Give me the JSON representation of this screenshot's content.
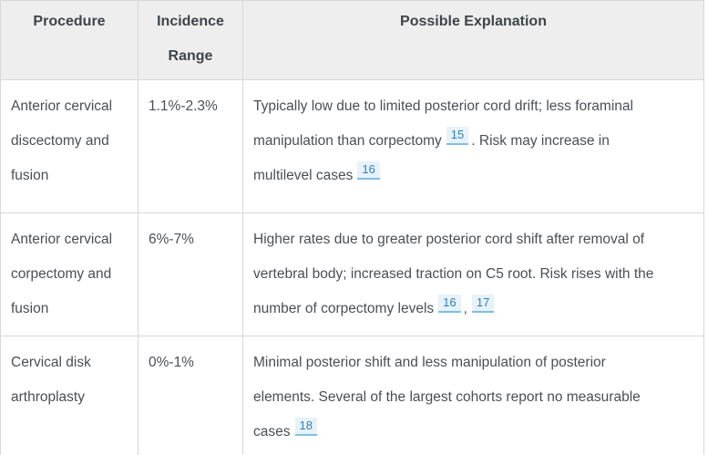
{
  "table": {
    "columns": [
      {
        "label": "Procedure"
      },
      {
        "label": "Incidence Range"
      },
      {
        "label": "Possible Explanation"
      }
    ],
    "rows": [
      {
        "procedure": "Anterior cervical discectomy and fusion",
        "incidence": "1.1%-2.3%",
        "explanation": [
          {
            "t": "Typically low due to limited posterior cord drift; less foraminal"
          },
          {
            "br": true
          },
          {
            "t": "manipulation than corpectomy"
          },
          {
            "cite": "15"
          },
          {
            "t": ". Risk may increase in"
          },
          {
            "br": true
          },
          {
            "t": "multilevel cases"
          },
          {
            "cite": "16"
          }
        ]
      },
      {
        "procedure": "Anterior cervical corpectomy and fusion",
        "incidence": "6%-7%",
        "explanation": [
          {
            "t": "Higher rates due to greater posterior cord shift after removal of"
          },
          {
            "br": true
          },
          {
            "t": "vertebral body; increased traction on C5 root. Risk rises with the"
          },
          {
            "br": true
          },
          {
            "t": "number of corpectomy levels"
          },
          {
            "cite": "16"
          },
          {
            "t": ","
          },
          {
            "cite": "17"
          }
        ]
      },
      {
        "procedure": "Cervical disk arthroplasty",
        "incidence": "0%-1%",
        "explanation": [
          {
            "t": "Minimal posterior shift and less manipulation of posterior"
          },
          {
            "br": true
          },
          {
            "t": "elements. Several of the largest cohorts report no measurable"
          },
          {
            "br": true
          },
          {
            "t": "cases"
          },
          {
            "cite": "18"
          }
        ]
      }
    ]
  },
  "colors": {
    "header_bg": "#eeeeee",
    "header_text": "#3f444a",
    "body_text": "#4b4f54",
    "border": "#d8d8d8",
    "citation_text": "#2e81b8",
    "citation_bg": "#e7f2fa",
    "citation_underline": "#7ebfe6"
  }
}
